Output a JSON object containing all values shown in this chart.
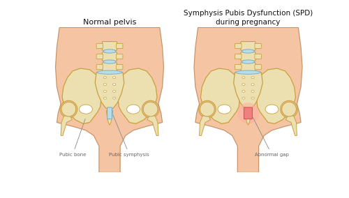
{
  "title_left": "Normal pelvis",
  "title_right": "Symphysis Pubis Dysfunction (SPD)\nduring pregnancy",
  "label_pubic_bone": "Pubic bone",
  "label_pubic_symphysis": "Pubic symphysis",
  "label_abnormal_gap": "Abnormal gap",
  "bg_color": "#ffffff",
  "skin_color": "#f5c5a3",
  "skin_outline": "#c8956a",
  "bone_fill": "#ede0b0",
  "bone_outline": "#c8a040",
  "disc_color": "#b8dde8",
  "disc_outline": "#7ab0c8",
  "red_highlight": "#e05050",
  "red_fill": "#f08080",
  "red_glow": "#fbb0a0",
  "text_color": "#666666",
  "title_color": "#111111",
  "line_color": "#888888"
}
